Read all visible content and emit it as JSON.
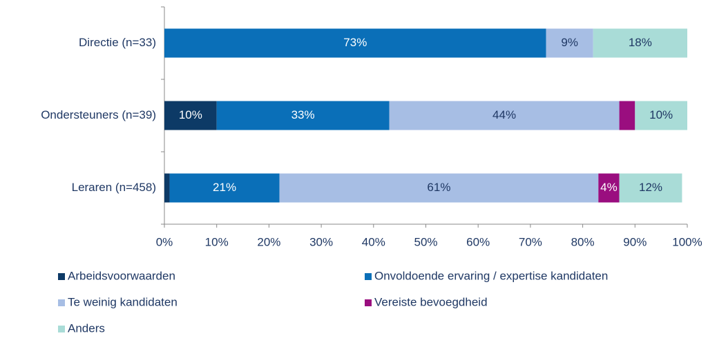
{
  "chart_data": {
    "type": "stacked-bar-horizontal",
    "categories": [
      "Directie (n=33)",
      "Ondersteuners (n=39)",
      "Leraren (n=458)"
    ],
    "series": [
      {
        "name": "Arbeidsvoorwaarden",
        "color": "#0d3a66",
        "values": [
          0,
          10,
          1
        ],
        "value_labels": [
          null,
          "10%",
          null
        ]
      },
      {
        "name": "Onvoldoende ervaring / expertise kandidaten",
        "color": "#0a6fb8",
        "values": [
          73,
          33,
          21
        ],
        "value_labels": [
          "73%",
          "33%",
          "21%"
        ]
      },
      {
        "name": "Te weinig kandidaten",
        "color": "#a7bee4",
        "values": [
          9,
          44,
          61
        ],
        "value_labels": [
          "9%",
          "44%",
          "61%"
        ]
      },
      {
        "name": "Vereiste bevoegdheid",
        "color": "#9a0e7f",
        "values": [
          0,
          3,
          4
        ],
        "value_labels": [
          null,
          null,
          "4%"
        ]
      },
      {
        "name": "Anders",
        "color": "#a9dcd7",
        "values": [
          18,
          10,
          12
        ],
        "value_labels": [
          "18%",
          "10%",
          "12%"
        ]
      }
    ],
    "xlim": [
      0,
      100
    ],
    "xticks": [
      {
        "value": 0,
        "label": "0%"
      },
      {
        "value": 10,
        "label": "10%"
      },
      {
        "value": 20,
        "label": "20%"
      },
      {
        "value": 30,
        "label": "30%"
      },
      {
        "value": 40,
        "label": "40%"
      },
      {
        "value": 50,
        "label": "50%"
      },
      {
        "value": 60,
        "label": "60%"
      },
      {
        "value": 70,
        "label": "70%"
      },
      {
        "value": 80,
        "label": "80%"
      },
      {
        "value": 90,
        "label": "90%"
      },
      {
        "value": 100,
        "label": "100%"
      }
    ],
    "legend": "bottom"
  }
}
